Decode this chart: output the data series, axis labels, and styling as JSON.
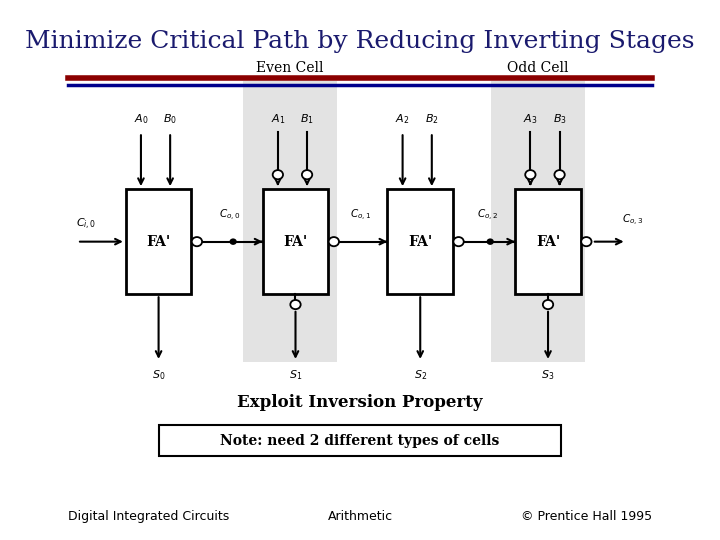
{
  "title": "Minimize Critical Path by Reducing Inverting Stages",
  "title_color": "#1a1a6e",
  "title_fontsize": 18,
  "footer_left": "Digital Integrated Circuits",
  "footer_center": "Arithmetic",
  "footer_right": "© Prentice Hall 1995",
  "footer_fontsize": 9,
  "bg_color": "#ffffff",
  "header_line1_color": "#8b0000",
  "header_line2_color": "#00008b",
  "even_cell_label": "Even Cell",
  "odd_cell_label": "Odd Cell",
  "fa_labels": [
    "FA'",
    "FA'",
    "FA'",
    "FA'"
  ],
  "shaded_color": "#cccccc",
  "note_text": "Note: need 2 different types of cells",
  "exploit_text": "Exploit Inversion Property"
}
